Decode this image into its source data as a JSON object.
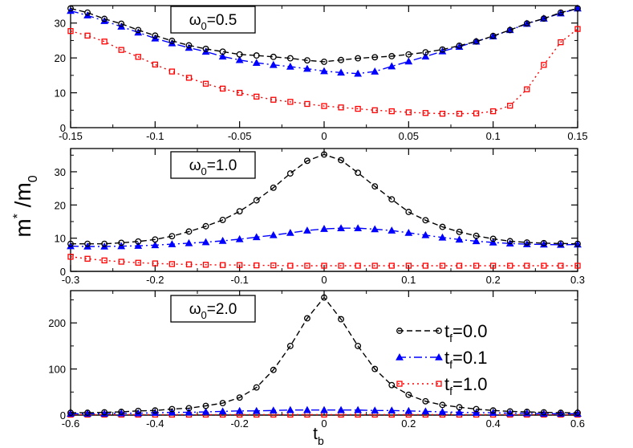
{
  "colors": {
    "t0": "#000000",
    "t01": "#0000ff",
    "t1": "#ff0000"
  },
  "ylabel": {
    "base": "m",
    "sup": "*",
    "mid": " /m",
    "sub": "0"
  },
  "xlabel": {
    "base": "t",
    "sub": "b"
  },
  "chart_data": [
    {
      "type": "line",
      "panel": "top",
      "annotation": {
        "prefix": "ω",
        "sub": "0",
        "suffix": "=0.5"
      },
      "xlim": [
        -0.15,
        0.15
      ],
      "ylim": [
        0,
        35
      ],
      "xticks": [
        "-0.15",
        "-0.1",
        "-0.05",
        "0",
        "0.05",
        "0.1",
        "0.15"
      ],
      "xtick_values": [
        -0.15,
        -0.1,
        -0.05,
        0,
        0.05,
        0.1,
        0.15
      ],
      "yticks": [
        "0",
        "10",
        "20",
        "30"
      ],
      "ytick_values": [
        0,
        10,
        20,
        30
      ],
      "x": [
        -0.15,
        -0.14,
        -0.13,
        -0.12,
        -0.11,
        -0.1,
        -0.09,
        -0.08,
        -0.07,
        -0.06,
        -0.05,
        -0.04,
        -0.03,
        -0.02,
        -0.01,
        0,
        0.01,
        0.02,
        0.03,
        0.04,
        0.05,
        0.06,
        0.07,
        0.08,
        0.09,
        0.1,
        0.11,
        0.12,
        0.13,
        0.14,
        0.15
      ],
      "series": [
        {
          "name": "tf=0.0",
          "marker": "circle",
          "colorKey": "t0",
          "dash": "7,4",
          "values": [
            34.2,
            33.0,
            31.2,
            29.8,
            28.0,
            26.4,
            24.9,
            23.6,
            22.6,
            21.8,
            21.0,
            20.7,
            20.3,
            19.9,
            19.3,
            18.9,
            19.4,
            19.9,
            20.2,
            20.5,
            21.0,
            21.6,
            22.4,
            23.5,
            24.7,
            26.3,
            28.0,
            29.9,
            31.3,
            33.0,
            34.2
          ]
        },
        {
          "name": "tf=0.1",
          "marker": "triangle",
          "colorKey": "t01",
          "dash": "10,4,2,4",
          "values": [
            33.5,
            32.2,
            30.6,
            29.0,
            27.3,
            25.6,
            24.2,
            22.9,
            21.8,
            20.4,
            19.4,
            18.6,
            18.0,
            17.5,
            16.9,
            16.2,
            15.8,
            15.5,
            16.1,
            17.6,
            19.0,
            20.4,
            21.9,
            23.2,
            24.7,
            26.2,
            28.0,
            29.8,
            31.3,
            32.8,
            34.2
          ]
        },
        {
          "name": "tf=1.0",
          "marker": "square",
          "colorKey": "t1",
          "dash": "2,4",
          "values": [
            27.7,
            26.4,
            24.7,
            22.3,
            20.3,
            18.1,
            16.1,
            14.3,
            12.6,
            11.2,
            10.0,
            8.9,
            8.0,
            7.4,
            6.8,
            6.2,
            5.8,
            5.4,
            5.0,
            4.7,
            4.4,
            4.2,
            4.0,
            4.0,
            4.1,
            4.7,
            6.3,
            11.0,
            18.0,
            24.5,
            28.3
          ]
        }
      ]
    },
    {
      "type": "line",
      "panel": "middle",
      "annotation": {
        "prefix": "ω",
        "sub": "0",
        "suffix": "=1.0"
      },
      "xlim": [
        -0.3,
        0.3
      ],
      "ylim": [
        0,
        37
      ],
      "xticks": [
        "-0.3",
        "-0.2",
        "-0.1",
        "0",
        "0.1",
        "0.2",
        "0.3"
      ],
      "xtick_values": [
        -0.3,
        -0.2,
        -0.1,
        0,
        0.1,
        0.2,
        0.3
      ],
      "yticks": [
        "0",
        "10",
        "20",
        "30"
      ],
      "ytick_values": [
        0,
        10,
        20,
        30
      ],
      "x": [
        -0.3,
        -0.28,
        -0.26,
        -0.24,
        -0.22,
        -0.2,
        -0.18,
        -0.16,
        -0.14,
        -0.12,
        -0.1,
        -0.08,
        -0.06,
        -0.04,
        -0.02,
        0,
        0.02,
        0.04,
        0.06,
        0.08,
        0.1,
        0.12,
        0.14,
        0.16,
        0.18,
        0.2,
        0.22,
        0.24,
        0.26,
        0.28,
        0.3
      ],
      "series": [
        {
          "name": "tf=0.0",
          "marker": "circle",
          "colorKey": "t0",
          "dash": "7,4",
          "values": [
            8.3,
            8.3,
            8.3,
            8.6,
            9.0,
            9.6,
            10.6,
            12.0,
            13.6,
            15.5,
            18.1,
            21.4,
            25.2,
            29.5,
            33.3,
            35.2,
            33.5,
            29.7,
            25.6,
            21.7,
            17.9,
            15.4,
            13.4,
            11.9,
            10.7,
            9.8,
            9.1,
            8.7,
            8.5,
            8.4,
            8.3
          ]
        },
        {
          "name": "tf=0.1",
          "marker": "triangle",
          "colorKey": "t01",
          "dash": "10,4,2,4",
          "values": [
            7.6,
            7.5,
            7.5,
            7.6,
            7.7,
            7.9,
            8.2,
            8.5,
            8.8,
            9.2,
            9.7,
            10.3,
            10.9,
            11.6,
            12.3,
            12.8,
            13.0,
            13.0,
            12.7,
            12.3,
            11.6,
            10.9,
            10.2,
            9.6,
            9.1,
            8.7,
            8.4,
            8.2,
            8.1,
            8.0,
            8.1
          ]
        },
        {
          "name": "tf=1.0",
          "marker": "square",
          "colorKey": "t1",
          "dash": "2,4",
          "values": [
            4.4,
            3.8,
            3.3,
            2.9,
            2.6,
            2.4,
            2.2,
            2.1,
            2.0,
            1.9,
            1.9,
            1.8,
            1.8,
            1.7,
            1.7,
            1.7,
            1.7,
            1.7,
            1.7,
            1.7,
            1.7,
            1.7,
            1.7,
            1.7,
            1.7,
            1.7,
            1.7,
            1.7,
            1.7,
            1.7,
            1.7
          ]
        }
      ]
    },
    {
      "type": "line",
      "panel": "bottom",
      "annotation": {
        "prefix": "ω",
        "sub": "0",
        "suffix": "=2.0"
      },
      "xlim": [
        -0.6,
        0.6
      ],
      "ylim": [
        0,
        270
      ],
      "xticks": [
        "-0.6",
        "-0.4",
        "-0.2",
        "0",
        "0.2",
        "0.4",
        "0.6"
      ],
      "xtick_values": [
        -0.6,
        -0.4,
        -0.2,
        0,
        0.2,
        0.4,
        0.6
      ],
      "yticks": [
        "0",
        "100",
        "200"
      ],
      "ytick_values": [
        0,
        100,
        200
      ],
      "x": [
        -0.6,
        -0.56,
        -0.52,
        -0.48,
        -0.44,
        -0.4,
        -0.36,
        -0.32,
        -0.28,
        -0.24,
        -0.2,
        -0.16,
        -0.12,
        -0.08,
        -0.04,
        0,
        0.04,
        0.08,
        0.12,
        0.16,
        0.2,
        0.24,
        0.28,
        0.32,
        0.36,
        0.4,
        0.44,
        0.48,
        0.52,
        0.56,
        0.6
      ],
      "series": [
        {
          "name": "tf=0.0",
          "marker": "circle",
          "colorKey": "t0",
          "dash": "7,4",
          "values": [
            5,
            5,
            6,
            7,
            9,
            10,
            13,
            15,
            20,
            26,
            38,
            60,
            98,
            150,
            210,
            255,
            208,
            150,
            100,
            65,
            44,
            30,
            22,
            17,
            13,
            10,
            8,
            7,
            6,
            5,
            5
          ]
        },
        {
          "name": "tf=0.1",
          "marker": "triangle",
          "colorKey": "t01",
          "dash": "10,4,2,4",
          "values": [
            3,
            3,
            3,
            4,
            4,
            5,
            6,
            6,
            7,
            8,
            9,
            9,
            10,
            11,
            11,
            11,
            11,
            11,
            10,
            10,
            9,
            8,
            7,
            6,
            5,
            5,
            4,
            4,
            3,
            3,
            3
          ]
        },
        {
          "name": "tf=1.0",
          "marker": "square",
          "colorKey": "t1",
          "dash": "2,4",
          "values": [
            1,
            1,
            1,
            1,
            1,
            1,
            1,
            1,
            1,
            1,
            1,
            1,
            1,
            1,
            1,
            1,
            1,
            1,
            1,
            1,
            1,
            1,
            1,
            1,
            1,
            1,
            1,
            1,
            1,
            1,
            1
          ]
        }
      ],
      "legend": [
        {
          "base": "t",
          "sub": "f",
          "label": "=0.0",
          "marker": "circle",
          "colorKey": "t0",
          "dash": "7,4"
        },
        {
          "base": "t",
          "sub": "f",
          "label": "=0.1",
          "marker": "triangle",
          "colorKey": "t01",
          "dash": "10,4,2,4"
        },
        {
          "base": "t",
          "sub": "f",
          "label": "=1.0",
          "marker": "square",
          "colorKey": "t1",
          "dash": "2,4"
        }
      ]
    }
  ]
}
